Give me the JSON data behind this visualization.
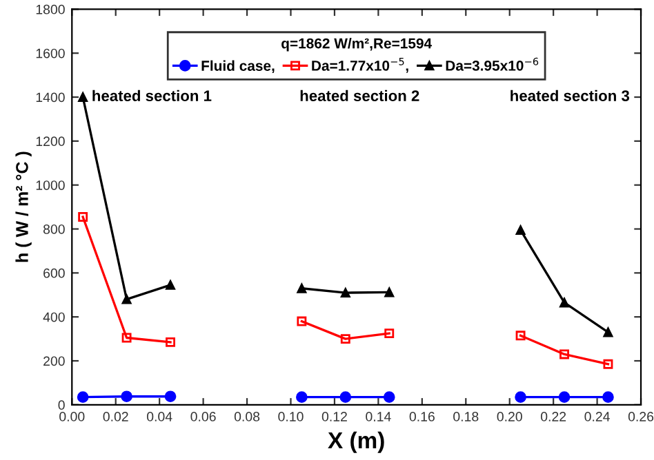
{
  "chart_data": {
    "type": "line",
    "xlabel": "X (m)",
    "ylabel": "h ( W / m² °C )",
    "legend_title": "q=1862 W/m²,Re=1594",
    "x": [
      0.005,
      0.025,
      0.045,
      0.075,
      0.105,
      0.125,
      0.145,
      0.175,
      0.205,
      0.225,
      0.245
    ],
    "series": [
      {
        "name": "Fluid case,",
        "color": "#0000ff",
        "marker": "circle",
        "values": [
          35,
          38,
          38,
          null,
          35,
          35,
          35,
          null,
          35,
          35,
          35
        ]
      },
      {
        "name": "Da=1.77x10$^{−5}$,",
        "color": "#ff0000",
        "marker": "square",
        "values": [
          855,
          305,
          285,
          null,
          380,
          300,
          325,
          null,
          315,
          230,
          185
        ]
      },
      {
        "name": "Da=3.95x10$^{−6}$",
        "color": "#000000",
        "marker": "triangle",
        "values": [
          1400,
          480,
          545,
          null,
          530,
          510,
          512,
          null,
          795,
          465,
          330
        ]
      }
    ],
    "annotations": [
      "heated section 1",
      "heated section 2",
      "heated section 3"
    ],
    "xlim": [
      0.0,
      0.26
    ],
    "xticks": [
      {
        "value": 0.0,
        "label": "0.00"
      },
      {
        "value": 0.02,
        "label": "0.02"
      },
      {
        "value": 0.04,
        "label": "0.04"
      },
      {
        "value": 0.06,
        "label": "0.06"
      },
      {
        "value": 0.08,
        "label": "0.08"
      },
      {
        "value": 0.1,
        "label": "0.10"
      },
      {
        "value": 0.12,
        "label": "0.12"
      },
      {
        "value": 0.14,
        "label": "0.14"
      },
      {
        "value": 0.16,
        "label": "0.16"
      },
      {
        "value": 0.18,
        "label": "0.18"
      },
      {
        "value": 0.2,
        "label": "0.20"
      },
      {
        "value": 0.22,
        "label": "0.22"
      },
      {
        "value": 0.24,
        "label": "0.24"
      },
      {
        "value": 0.26,
        "label": "0.26"
      }
    ],
    "ylim": [
      0,
      1800
    ],
    "yticks": [
      0,
      200,
      400,
      600,
      800,
      1000,
      1200,
      1400,
      1600,
      1800
    ],
    "legend": "top",
    "grid": false
  }
}
